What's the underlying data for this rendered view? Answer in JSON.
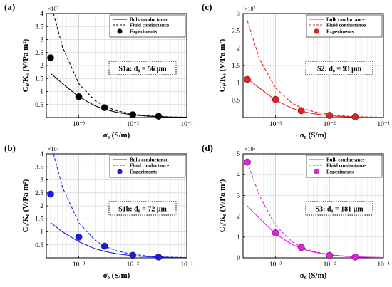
{
  "panels": [
    {
      "label": "(a)",
      "annotation": "S1a: d₀ = 56 μm",
      "color": "#000000",
      "ymax": 4,
      "yticks": [
        "0.5",
        "1",
        "1.5",
        "2",
        "2.5",
        "3",
        "3.5",
        "4"
      ],
      "yexp": "×10⁷",
      "xlabel": "σ₀ (S/m)",
      "ylabel": "C₀/K₀ (V/Pa m²)",
      "legend": [
        "Bulk conductance",
        "Fluid conductance",
        "Experiments"
      ]
    },
    {
      "label": "(c)",
      "annotation": "S2: d₀ = 93 μm",
      "color": "#ee1c1c",
      "ymax": 3,
      "yticks": [
        "0.5",
        "1",
        "1.5",
        "2",
        "2.5",
        "3"
      ],
      "yexp": "×10⁷",
      "xlabel": "σ₀ (S/m)",
      "ylabel": "C₀/K₀ (V/Pa m²)",
      "legend": [
        "Bulk conductance",
        "Fluid conductance",
        "Experiments"
      ]
    },
    {
      "label": "(b)",
      "annotation": "S1b: d₀ = 72 μm",
      "color": "#1a1ae6",
      "ymax": 4,
      "yticks": [
        "0.5",
        "1",
        "1.5",
        "2",
        "2.5",
        "3",
        "3.5",
        "4"
      ],
      "yexp": "×10⁷",
      "xlabel": "σ₀ (S/m)",
      "ylabel": "C₀/K₀ (V/Pa m²)",
      "legend": [
        "Bulk conductance",
        "Fluid conductance",
        "Experiments"
      ]
    },
    {
      "label": "(d)",
      "annotation": "S3: d₀ = 181 μm",
      "color": "#e61ee6",
      "ymax": 5,
      "yticks": [
        "0",
        "1",
        "2",
        "3",
        "4",
        "5"
      ],
      "yexp": "×10⁶",
      "xlabel": "σ₀ (S/m)",
      "ylabel": "C₀/K₀ (V/Pa m²)",
      "legend": [
        "Bulk conductance",
        "Fluid conductance",
        "Experiments"
      ]
    }
  ],
  "xticks": [
    "10⁻³",
    "10⁻²",
    "10⁻¹"
  ],
  "chart_data": [
    {
      "type": "line",
      "title": "",
      "xlabel": "σ₀ (S/m)",
      "ylabel": "C₀/K₀ (V/Pa m²)",
      "xscale": "log",
      "xlim": [
        0.00025,
        0.1
      ],
      "ylim": [
        0,
        4
      ],
      "yunit_multiplier": 10000000,
      "legend_position": "top-right",
      "series": [
        {
          "name": "Bulk conductance",
          "style": "solid",
          "x": [
            0.0003,
            0.0005,
            0.001,
            0.002,
            0.003,
            0.005,
            0.01,
            0.02,
            0.03,
            0.05,
            0.1
          ],
          "y": [
            1.7,
            1.3,
            0.8,
            0.45,
            0.32,
            0.2,
            0.1,
            0.05,
            0.035,
            0.02,
            0.01
          ]
        },
        {
          "name": "Fluid conductance",
          "style": "dashed",
          "x": [
            0.00034,
            0.0005,
            0.001,
            0.002,
            0.003,
            0.005,
            0.01,
            0.02,
            0.03,
            0.05,
            0.1
          ],
          "y": [
            4.0,
            2.7,
            1.3,
            0.65,
            0.43,
            0.26,
            0.13,
            0.065,
            0.043,
            0.026,
            0.013
          ]
        },
        {
          "name": "Experiments",
          "style": "markers",
          "x": [
            0.0003,
            0.001,
            0.003,
            0.01,
            0.03
          ],
          "y": [
            2.3,
            0.8,
            0.38,
            0.11,
            0.05
          ]
        }
      ]
    },
    {
      "type": "line",
      "title": "",
      "xlabel": "σ₀ (S/m)",
      "ylabel": "C₀/K₀ (V/Pa m²)",
      "xscale": "log",
      "xlim": [
        0.00025,
        0.1
      ],
      "ylim": [
        0,
        3
      ],
      "yunit_multiplier": 10000000,
      "legend_position": "top-right",
      "series": [
        {
          "name": "Bulk conductance",
          "style": "solid",
          "x": [
            0.0003,
            0.0005,
            0.001,
            0.002,
            0.003,
            0.005,
            0.01,
            0.02,
            0.03,
            0.05,
            0.1
          ],
          "y": [
            1.12,
            0.85,
            0.5,
            0.27,
            0.18,
            0.11,
            0.05,
            0.025,
            0.017,
            0.01,
            0.005
          ]
        },
        {
          "name": "Fluid conductance",
          "style": "dashed",
          "x": [
            0.0003,
            0.0005,
            0.001,
            0.002,
            0.003,
            0.005,
            0.01,
            0.02,
            0.03,
            0.05,
            0.1
          ],
          "y": [
            2.8,
            1.7,
            0.85,
            0.42,
            0.28,
            0.17,
            0.085,
            0.042,
            0.028,
            0.017,
            0.0085
          ]
        },
        {
          "name": "Experiments",
          "style": "markers",
          "x": [
            0.0003,
            0.001,
            0.003,
            0.01,
            0.03
          ],
          "y": [
            1.1,
            0.52,
            0.2,
            0.06,
            0.02
          ]
        }
      ]
    },
    {
      "type": "line",
      "title": "",
      "xlabel": "σ₀ (S/m)",
      "ylabel": "C₀/K₀ (V/Pa m²)",
      "xscale": "log",
      "xlim": [
        0.00025,
        0.1
      ],
      "ylim": [
        0,
        4
      ],
      "yunit_multiplier": 10000000,
      "legend_position": "top-right",
      "series": [
        {
          "name": "Bulk conductance",
          "style": "solid",
          "x": [
            0.0003,
            0.0005,
            0.001,
            0.002,
            0.003,
            0.005,
            0.01,
            0.02,
            0.03,
            0.05,
            0.1
          ],
          "y": [
            1.35,
            1.0,
            0.62,
            0.35,
            0.25,
            0.16,
            0.08,
            0.04,
            0.027,
            0.016,
            0.008
          ]
        },
        {
          "name": "Fluid conductance",
          "style": "dashed",
          "x": [
            0.00034,
            0.0005,
            0.001,
            0.002,
            0.003,
            0.005,
            0.01,
            0.02,
            0.03,
            0.05,
            0.1
          ],
          "y": [
            4.0,
            2.7,
            1.35,
            0.68,
            0.45,
            0.27,
            0.135,
            0.068,
            0.045,
            0.027,
            0.0135
          ]
        },
        {
          "name": "Experiments",
          "style": "markers",
          "x": [
            0.0003,
            0.001,
            0.003,
            0.01,
            0.03
          ],
          "y": [
            2.45,
            0.8,
            0.45,
            0.1,
            0.03
          ]
        }
      ]
    },
    {
      "type": "line",
      "title": "",
      "xlabel": "σ₀ (S/m)",
      "ylabel": "C₀/K₀ (V/Pa m²)",
      "xscale": "log",
      "xlim": [
        0.00025,
        0.1
      ],
      "ylim": [
        0,
        5
      ],
      "yunit_multiplier": 1000000,
      "legend_position": "top-right",
      "series": [
        {
          "name": "Bulk conductance",
          "style": "solid",
          "x": [
            0.0003,
            0.0005,
            0.001,
            0.002,
            0.003,
            0.005,
            0.01,
            0.02,
            0.03,
            0.05,
            0.1
          ],
          "y": [
            2.5,
            1.9,
            1.15,
            0.65,
            0.45,
            0.28,
            0.14,
            0.07,
            0.05,
            0.03,
            0.015
          ]
        },
        {
          "name": "Fluid conductance",
          "style": "dashed",
          "x": [
            0.0003,
            0.0005,
            0.001,
            0.002,
            0.003,
            0.005,
            0.01,
            0.02,
            0.03,
            0.05,
            0.1
          ],
          "y": [
            4.6,
            3.0,
            1.55,
            0.78,
            0.52,
            0.31,
            0.155,
            0.078,
            0.052,
            0.031,
            0.0155
          ]
        },
        {
          "name": "Experiments",
          "style": "markers",
          "x": [
            0.0003,
            0.001,
            0.003,
            0.01,
            0.03
          ],
          "y": [
            4.6,
            1.2,
            0.5,
            0.12,
            0.04
          ]
        }
      ]
    }
  ]
}
